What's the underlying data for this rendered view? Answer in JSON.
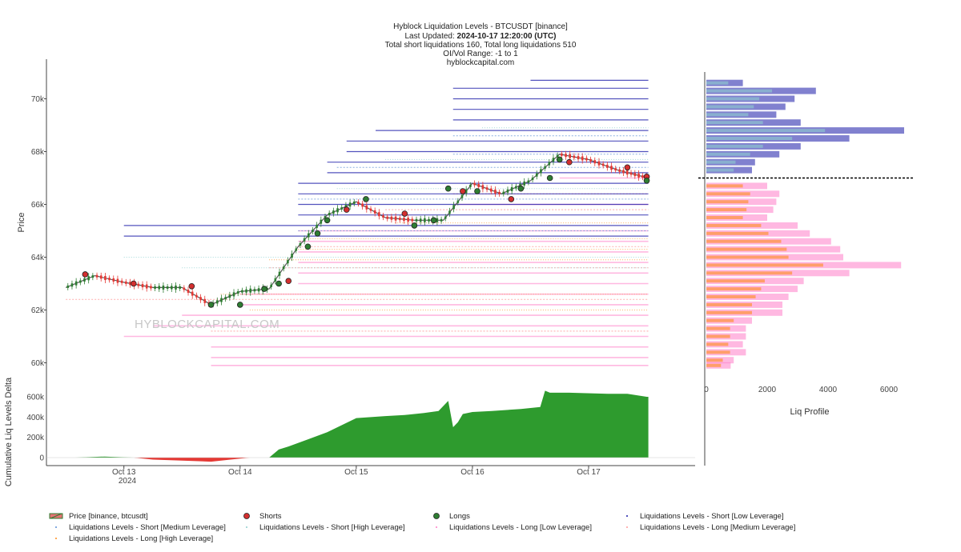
{
  "header": {
    "title": "Hyblock Liquidation Levels - BTCUSDT [binance]",
    "updated_label": "Last Updated: ",
    "updated_value": "2024-10-17 12:20:00 (UTC)",
    "totals": "Total short liquidations 160, Total long liquidations 510",
    "range": "OI/Vol Range: -1 to 1",
    "site": "hyblockcapital.com"
  },
  "watermark": "HYBLOCKCAPITAL.COM",
  "colors": {
    "price_up": "#2e7d32",
    "price_down": "#e53935",
    "short_low": "#1a1aa8",
    "short_medium": "#5a8fd6",
    "short_high": "#8fcfcf",
    "long_low": "#ff7ec8",
    "long_medium": "#ff9a9a",
    "long_high": "#ff8c1a",
    "shorts_marker": "#d32f2f",
    "longs_marker": "#2e7d32",
    "delta_pos": "#2e9b2e",
    "delta_neg": "#e53935",
    "current_price_line": "#000000"
  },
  "chart_data": [
    {
      "type": "line",
      "name": "price-panel",
      "ylabel": "Price",
      "ylim": [
        59500,
        71500
      ],
      "yticks": [
        60000,
        62000,
        64000,
        66000,
        68000,
        70000
      ],
      "ytick_labels": [
        "60k",
        "62k",
        "64k",
        "66k",
        "68k",
        "70k"
      ],
      "x_range": [
        "2024-10-12 08:00",
        "2024-10-17 22:00"
      ],
      "current_price": 67000,
      "watermark": "HYBLOCKCAPITAL.COM",
      "series": [
        {
          "name": "Price [binance, btcusdt]",
          "x": [
            "2024-10-12 12:00",
            "2024-10-12 18:00",
            "2024-10-13 00:00",
            "2024-10-13 06:00",
            "2024-10-13 12:00",
            "2024-10-13 18:00",
            "2024-10-14 00:00",
            "2024-10-14 06:00",
            "2024-10-14 12:00",
            "2024-10-14 18:00",
            "2024-10-15 00:00",
            "2024-10-15 06:00",
            "2024-10-15 12:00",
            "2024-10-15 18:00",
            "2024-10-16 00:00",
            "2024-10-16 06:00",
            "2024-10-16 12:00",
            "2024-10-16 18:00",
            "2024-10-17 00:00",
            "2024-10-17 06:00",
            "2024-10-17 12:20"
          ],
          "y": [
            62850,
            63300,
            63050,
            62850,
            62850,
            62200,
            62700,
            62800,
            64400,
            65600,
            66100,
            65500,
            65400,
            65400,
            66800,
            66400,
            66900,
            67900,
            67700,
            67300,
            67000
          ]
        }
      ],
      "shorts_markers": {
        "name": "Shorts",
        "x": [
          "2024-10-12 16:00",
          "2024-10-13 02:00",
          "2024-10-13 14:00",
          "2024-10-14 10:00",
          "2024-10-14 22:00",
          "2024-10-15 10:00",
          "2024-10-15 22:00",
          "2024-10-16 08:00",
          "2024-10-16 20:00",
          "2024-10-17 08:00",
          "2024-10-17 12:00"
        ],
        "y": [
          63350,
          63000,
          62900,
          63100,
          65800,
          65650,
          66500,
          66200,
          67600,
          67400,
          67050
        ]
      },
      "longs_markers": {
        "name": "Longs",
        "x": [
          "2024-10-13 18:00",
          "2024-10-14 00:00",
          "2024-10-14 05:00",
          "2024-10-14 08:00",
          "2024-10-14 14:00",
          "2024-10-14 16:00",
          "2024-10-14 18:00",
          "2024-10-15 02:00",
          "2024-10-15 12:00",
          "2024-10-15 16:00",
          "2024-10-15 19:00",
          "2024-10-16 01:00",
          "2024-10-16 10:00",
          "2024-10-16 16:00",
          "2024-10-16 18:00",
          "2024-10-17 12:00"
        ],
        "y": [
          62200,
          62200,
          62800,
          63000,
          64400,
          64900,
          65400,
          66200,
          65200,
          65400,
          66600,
          66500,
          66600,
          67000,
          67700,
          66900
        ]
      },
      "liquidation_levels": {
        "short_low": [
          {
            "level": 70700,
            "start": "2024-10-16 12:00"
          },
          {
            "level": 70400,
            "start": "2024-10-15 20:00"
          },
          {
            "level": 70000,
            "start": "2024-10-15 20:00"
          },
          {
            "level": 69600,
            "start": "2024-10-15 20:00"
          },
          {
            "level": 69200,
            "start": "2024-10-15 20:00"
          },
          {
            "level": 68800,
            "start": "2024-10-15 04:00"
          },
          {
            "level": 68400,
            "start": "2024-10-14 22:00"
          },
          {
            "level": 68000,
            "start": "2024-10-14 22:00"
          },
          {
            "level": 67600,
            "start": "2024-10-14 18:00"
          },
          {
            "level": 67200,
            "start": "2024-10-14 18:00"
          },
          {
            "level": 66800,
            "start": "2024-10-14 12:00"
          },
          {
            "level": 66400,
            "start": "2024-10-14 12:00"
          },
          {
            "level": 66000,
            "start": "2024-10-14 12:00"
          },
          {
            "level": 65600,
            "start": "2024-10-14 12:00"
          },
          {
            "level": 65200,
            "start": "2024-10-13 00:00"
          },
          {
            "level": 64800,
            "start": "2024-10-13 00:00"
          }
        ],
        "short_medium": [
          {
            "level": 68600,
            "start": "2024-10-15 20:00"
          },
          {
            "level": 67900,
            "start": "2024-10-15 20:00"
          },
          {
            "level": 67400,
            "start": "2024-10-14 20:00"
          },
          {
            "level": 66200,
            "start": "2024-10-14 12:00"
          },
          {
            "level": 65000,
            "start": "2024-10-14 12:00"
          }
        ],
        "short_high": [
          {
            "level": 68900,
            "start": "2024-10-16 02:00"
          },
          {
            "level": 67700,
            "start": "2024-10-15 06:00"
          },
          {
            "level": 66600,
            "start": "2024-10-14 20:00"
          },
          {
            "level": 64000,
            "start": "2024-10-13 00:00"
          },
          {
            "level": 63600,
            "start": "2024-10-13 12:00"
          }
        ],
        "long_low": [
          {
            "level": 67000,
            "start": "2024-10-16 18:00"
          },
          {
            "level": 66000,
            "start": "2024-10-15 20:00"
          },
          {
            "level": 65000,
            "start": "2024-10-14 12:00"
          },
          {
            "level": 64600,
            "start": "2024-10-14 12:00"
          },
          {
            "level": 64200,
            "start": "2024-10-14 12:00"
          },
          {
            "level": 63800,
            "start": "2024-10-14 12:00"
          },
          {
            "level": 63400,
            "start": "2024-10-14 12:00"
          },
          {
            "level": 63000,
            "start": "2024-10-14 12:00"
          },
          {
            "level": 62600,
            "start": "2024-10-14 00:00"
          },
          {
            "level": 62200,
            "start": "2024-10-14 00:00"
          },
          {
            "level": 61800,
            "start": "2024-10-13 12:00"
          },
          {
            "level": 61400,
            "start": "2024-10-13 06:00"
          },
          {
            "level": 61000,
            "start": "2024-10-13 00:00"
          },
          {
            "level": 60600,
            "start": "2024-10-13 18:00"
          },
          {
            "level": 60200,
            "start": "2024-10-13 18:00"
          },
          {
            "level": 59900,
            "start": "2024-10-13 18:00"
          }
        ],
        "long_medium": [
          {
            "level": 66400,
            "start": "2024-10-15 20:00"
          },
          {
            "level": 65800,
            "start": "2024-10-15 06:00"
          },
          {
            "level": 64400,
            "start": "2024-10-14 12:00"
          },
          {
            "level": 63600,
            "start": "2024-10-14 06:00"
          },
          {
            "level": 62400,
            "start": "2024-10-12 12:00"
          },
          {
            "level": 61200,
            "start": "2024-10-13 18:00"
          }
        ],
        "long_high": [
          {
            "level": 65300,
            "start": "2024-10-15 08:00"
          },
          {
            "level": 64700,
            "start": "2024-10-14 14:00"
          },
          {
            "level": 64300,
            "start": "2024-10-14 12:00"
          },
          {
            "level": 63900,
            "start": "2024-10-14 06:00"
          },
          {
            "level": 62600,
            "start": "2024-10-13 20:00"
          },
          {
            "level": 62000,
            "start": "2024-10-14 02:00"
          }
        ]
      }
    },
    {
      "type": "area",
      "name": "cumulative-delta-panel",
      "ylabel": "Cumulative Liq Levels Delta",
      "ylim": [
        -30000,
        690000
      ],
      "yticks": [
        0,
        200000,
        400000,
        600000
      ],
      "ytick_labels": [
        "0",
        "200k",
        "400k",
        "600k"
      ],
      "xticks": [
        "2024-10-13",
        "2024-10-14",
        "2024-10-15",
        "2024-10-16",
        "2024-10-17"
      ],
      "xtick_labels": [
        "Oct 13",
        "Oct 14",
        "Oct 15",
        "Oct 16",
        "Oct 17"
      ],
      "xtick_sublabel": "2024",
      "series": [
        {
          "name": "Cumulative Liq Levels Delta",
          "x": [
            "2024-10-12 08:00",
            "2024-10-12 14:00",
            "2024-10-12 20:00",
            "2024-10-13 02:00",
            "2024-10-13 06:00",
            "2024-10-13 12:00",
            "2024-10-13 18:00",
            "2024-10-13 22:00",
            "2024-10-14 02:00",
            "2024-10-14 06:00",
            "2024-10-14 08:00",
            "2024-10-14 10:00",
            "2024-10-14 14:00",
            "2024-10-14 18:00",
            "2024-10-15 00:00",
            "2024-10-15 06:00",
            "2024-10-15 10:00",
            "2024-10-15 14:00",
            "2024-10-15 17:00",
            "2024-10-15 19:00",
            "2024-10-15 20:00",
            "2024-10-15 21:00",
            "2024-10-15 22:00",
            "2024-10-16 00:00",
            "2024-10-16 04:00",
            "2024-10-16 10:00",
            "2024-10-16 14:00",
            "2024-10-16 15:00",
            "2024-10-16 16:00",
            "2024-10-16 20:00",
            "2024-10-17 04:00",
            "2024-10-17 08:00",
            "2024-10-17 12:00",
            "2024-10-17 12:20"
          ],
          "y": [
            0,
            0,
            10000,
            0,
            -20000,
            -30000,
            -40000,
            -20000,
            0,
            0,
            80000,
            110000,
            180000,
            250000,
            390000,
            410000,
            420000,
            440000,
            460000,
            560000,
            300000,
            350000,
            430000,
            450000,
            460000,
            480000,
            500000,
            660000,
            640000,
            640000,
            630000,
            630000,
            600000,
            600000
          ]
        }
      ]
    },
    {
      "type": "bar",
      "name": "liq-profile-panel",
      "xlabel": "Liq Profile",
      "xlim": [
        0,
        6500
      ],
      "xticks": [
        0,
        2000,
        4000,
        6000
      ],
      "xtick_labels": [
        "0",
        "2000",
        "4000",
        "6000"
      ],
      "series": [
        {
          "name": "Short profile",
          "levels": [
            70600,
            70300,
            70000,
            69700,
            69400,
            69100,
            68800,
            68500,
            68200,
            67900,
            67600,
            67300
          ],
          "values": [
            1200,
            3600,
            2900,
            2600,
            2300,
            3100,
            6500,
            4700,
            3100,
            2400,
            1600,
            1500
          ]
        },
        {
          "name": "Long profile",
          "levels": [
            66700,
            66400,
            66100,
            65800,
            65500,
            65200,
            64900,
            64600,
            64300,
            64000,
            63700,
            63400,
            63100,
            62800,
            62500,
            62200,
            61900,
            61600,
            61300,
            61000,
            60700,
            60400,
            60100,
            59900
          ],
          "values": [
            2000,
            2400,
            2300,
            2200,
            2000,
            3000,
            3400,
            4100,
            4400,
            4500,
            6400,
            4700,
            3200,
            3000,
            2700,
            2500,
            2500,
            1500,
            1300,
            1300,
            1200,
            1300,
            900,
            800
          ]
        }
      ]
    }
  ],
  "legend": [
    {
      "label": "Price [binance, btcusdt]",
      "symbol": "price-candle"
    },
    {
      "label": "Shorts",
      "symbol": "red-dot"
    },
    {
      "label": "Longs",
      "symbol": "green-dot"
    },
    {
      "label": "Liquidations Levels - Short [Low Leverage]",
      "symbol": "dot",
      "color": "#1a1aa8"
    },
    {
      "label": "Liquidations Levels - Short [Medium Leverage]",
      "symbol": "dot",
      "color": "#5a8fd6"
    },
    {
      "label": "Liquidations Levels - Short [High Leverage]",
      "symbol": "dot",
      "color": "#8fcfcf"
    },
    {
      "label": "Liquidations Levels - Long [Low Leverage]",
      "symbol": "dot",
      "color": "#ff7ec8"
    },
    {
      "label": "Liquidations Levels - Long [Medium Leverage]",
      "symbol": "dot",
      "color": "#ff9a9a"
    },
    {
      "label": "Liquidations Levels - Long [High Leverage]",
      "symbol": "dot",
      "color": "#ff8c1a"
    }
  ]
}
